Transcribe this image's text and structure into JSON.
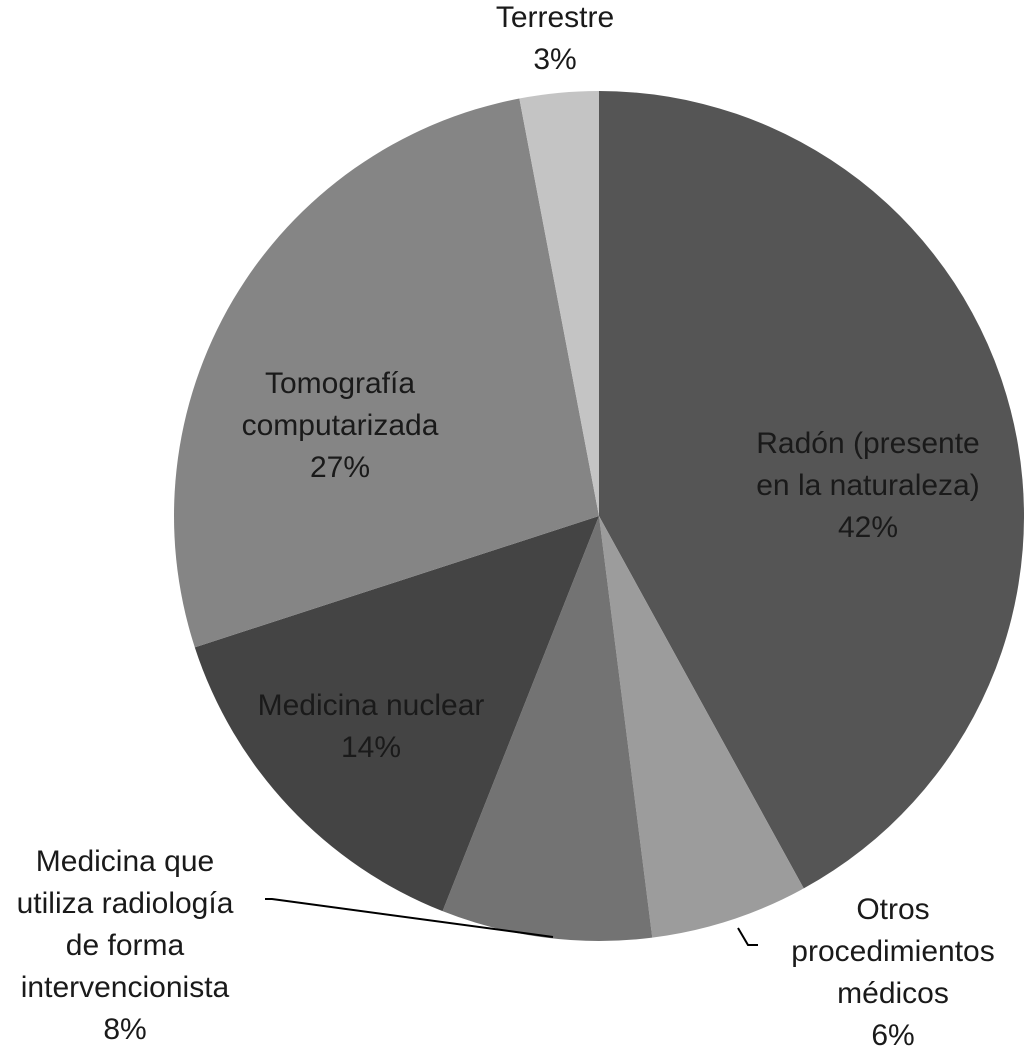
{
  "chart_data": {
    "type": "pie",
    "title": "",
    "start_angle_deg": 0,
    "direction": "clockwise",
    "slices": [
      {
        "label_lines": [
          "Radón (presente",
          "en la naturaleza)"
        ],
        "pct_label": "42%",
        "value": 42,
        "color": "#555555"
      },
      {
        "label_lines": [
          "Otros",
          "procedimientos",
          "médicos"
        ],
        "pct_label": "6%",
        "value": 6,
        "color": "#9c9c9c"
      },
      {
        "label_lines": [
          "Medicina que",
          "utiliza radiología",
          "de forma",
          "intervencionista"
        ],
        "pct_label": "8%",
        "value": 8,
        "color": "#737373"
      },
      {
        "label_lines": [
          "Medicina nuclear"
        ],
        "pct_label": "14%",
        "value": 14,
        "color": "#444444"
      },
      {
        "label_lines": [
          "Tomografía",
          "computarizada"
        ],
        "pct_label": "27%",
        "value": 27,
        "color": "#858585"
      },
      {
        "label_lines": [
          "Terrestre"
        ],
        "pct_label": "3%",
        "value": 3,
        "color": "#c4c4c4"
      }
    ]
  }
}
